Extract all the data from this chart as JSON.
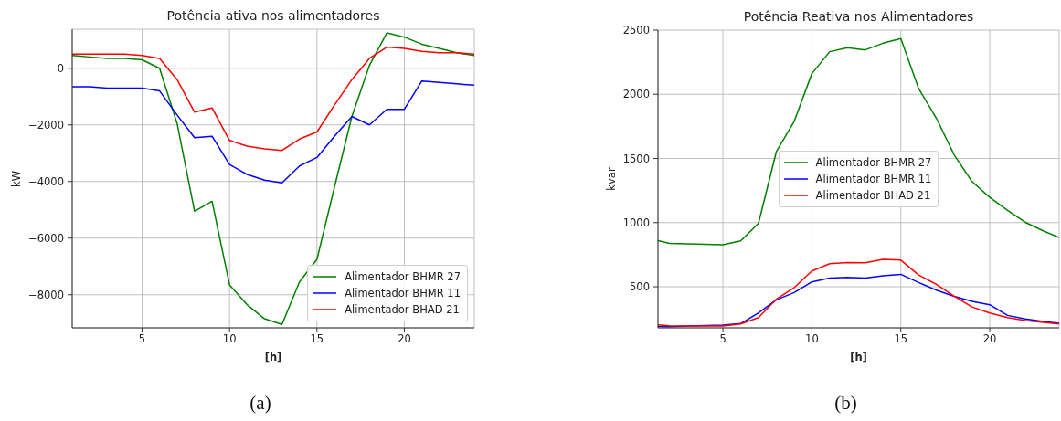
{
  "chart_data": [
    {
      "type": "line",
      "title": "Potência ativa nos alimentadores",
      "xlabel": "[h]",
      "ylabel": "kW",
      "annotations": [
        "(a)"
      ],
      "x": [
        1,
        2,
        3,
        4,
        5,
        6,
        7,
        8,
        9,
        10,
        11,
        12,
        13,
        14,
        15,
        16,
        17,
        18,
        19,
        20,
        21,
        22,
        23,
        24
      ],
      "series": [
        {
          "name": "Alimentador BHMR 27",
          "color": "#008000",
          "values": [
            450,
            400,
            350,
            350,
            300,
            0,
            -1950,
            -5050,
            -4700,
            -7650,
            -8350,
            -8850,
            -9050,
            -7550,
            -6750,
            -4200,
            -1700,
            100,
            1250,
            1100,
            850,
            700,
            550,
            450
          ]
        },
        {
          "name": "Alimentador BHMR 11",
          "color": "#0000ff",
          "values": [
            -650,
            -650,
            -700,
            -700,
            -700,
            -800,
            -1650,
            -2450,
            -2400,
            -3400,
            -3750,
            -3950,
            -4050,
            -3450,
            -3150,
            -2400,
            -1700,
            -2000,
            -1450,
            -1450,
            -450,
            -500,
            -550,
            -600
          ]
        },
        {
          "name": "Alimentador BHAD 21",
          "color": "#ff0000",
          "values": [
            500,
            500,
            500,
            500,
            450,
            350,
            -400,
            -1550,
            -1400,
            -2550,
            -2750,
            -2850,
            -2900,
            -2500,
            -2250,
            -1300,
            -400,
            350,
            750,
            700,
            600,
            550,
            550,
            500
          ]
        }
      ],
      "xlim": [
        1,
        24
      ],
      "ylim": [
        -9170,
        1380
      ],
      "xticks": [
        5,
        10,
        15,
        20
      ],
      "yticks": [
        {
          "value": -8000,
          "label": "−8000"
        },
        {
          "value": -6000,
          "label": "−6000"
        },
        {
          "value": -4000,
          "label": "−4000"
        },
        {
          "value": -2000,
          "label": "−2000"
        },
        0
      ],
      "grid": true,
      "legend": "bottom right"
    },
    {
      "type": "line",
      "title": "Potência Reativa nos Alimentadores",
      "xlabel": "[h]",
      "ylabel": "kvar",
      "annotations": [
        "(b)"
      ],
      "x": [
        1.35,
        2,
        3,
        4,
        5,
        6,
        7,
        8,
        9,
        10,
        11,
        12,
        13,
        14,
        15,
        16,
        17,
        18,
        19,
        20,
        21,
        22,
        23,
        23.9
      ],
      "series": [
        {
          "name": "Alimentador BHMR 27",
          "color": "#008000",
          "values": [
            860,
            839,
            835,
            831,
            827,
            858,
            995,
            1552,
            1787,
            2161,
            2332,
            2363,
            2346,
            2398,
            2434,
            2045,
            1813,
            1528,
            1320,
            1197,
            1095,
            1002,
            936,
            884
          ]
        },
        {
          "name": "Alimentador BHMR 11",
          "color": "#0000ff",
          "values": [
            190,
            189,
            195,
            197,
            201,
            213,
            296,
            398,
            455,
            538,
            568,
            573,
            568,
            585,
            597,
            533,
            474,
            426,
            386,
            360,
            277,
            249,
            230,
            215
          ]
        },
        {
          "name": "Alimentador BHAD 21",
          "color": "#ff0000",
          "values": [
            203,
            196,
            194,
            194,
            194,
            210,
            260,
            403,
            493,
            623,
            680,
            689,
            687,
            713,
            708,
            592,
            519,
            426,
            343,
            296,
            260,
            237,
            222,
            210
          ]
        }
      ],
      "xlim": [
        1.35,
        23.9
      ],
      "ylim": [
        180,
        2500
      ],
      "xticks": [
        5,
        10,
        15,
        20
      ],
      "yticks": [
        500,
        1000,
        1500,
        2000,
        2500
      ],
      "grid": true,
      "legend": "center"
    }
  ]
}
